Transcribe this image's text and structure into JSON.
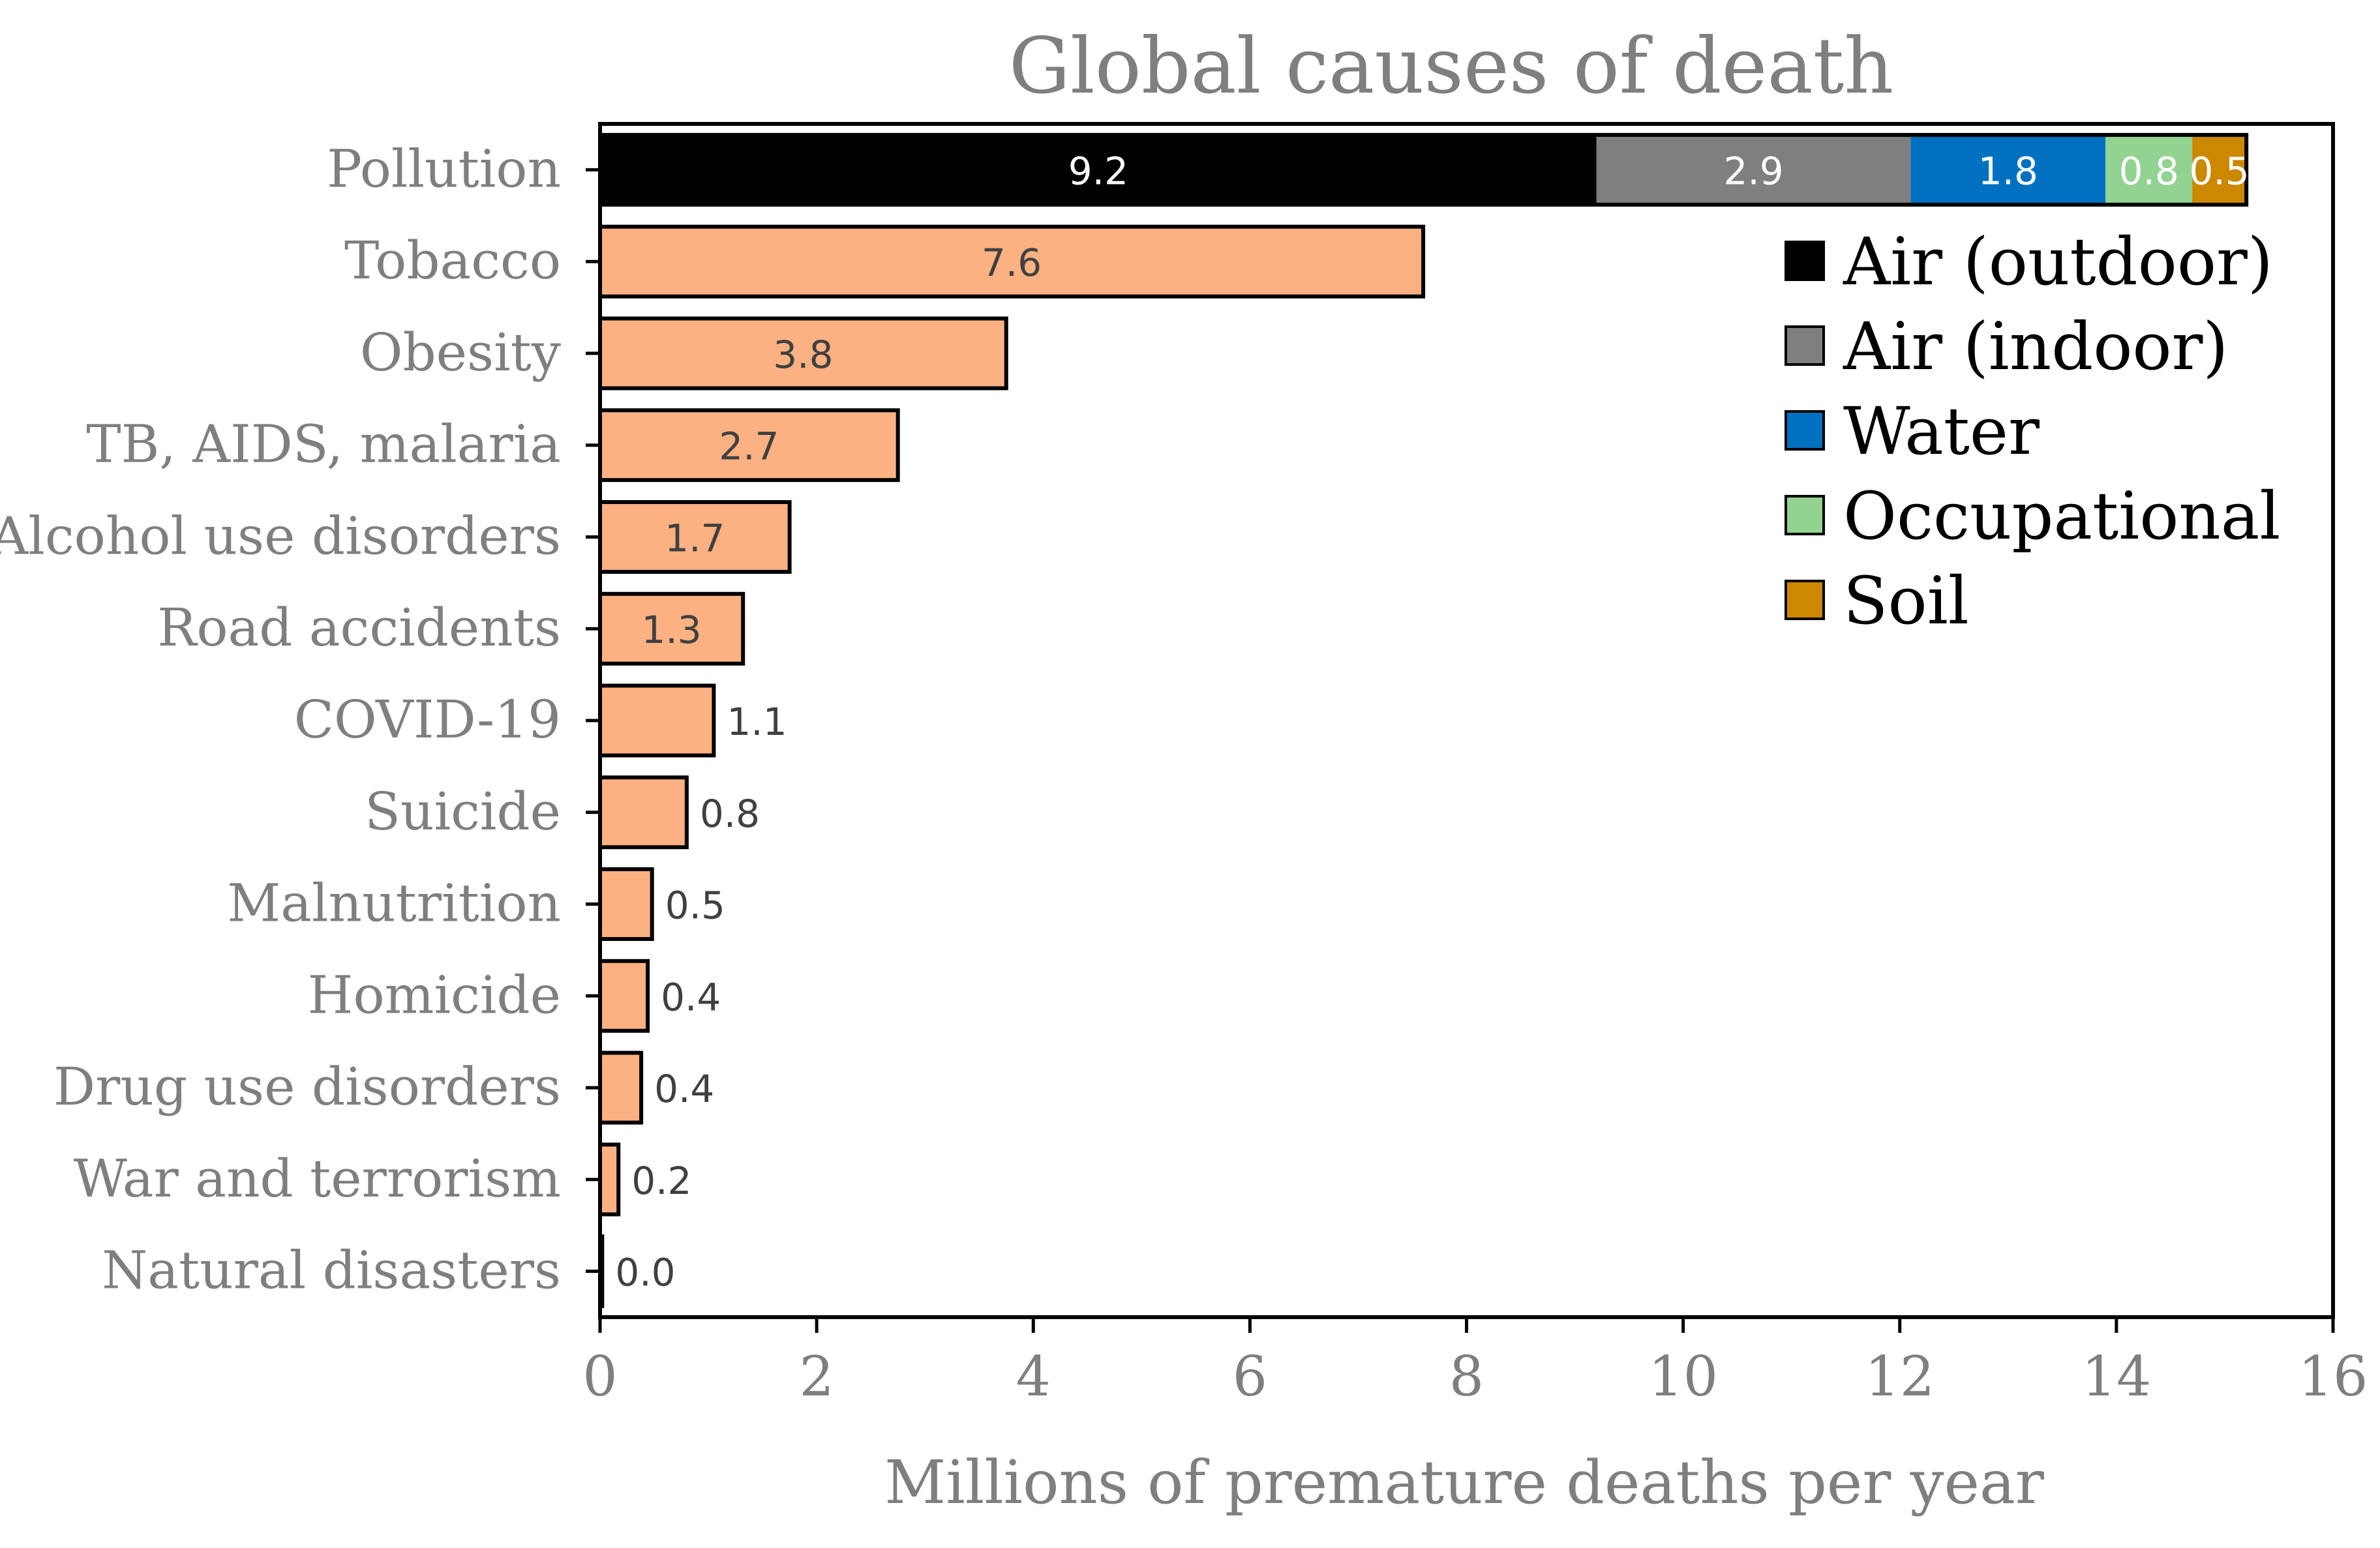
{
  "chart_data": {
    "type": "bar",
    "orientation": "horizontal",
    "title": "Global causes of death",
    "xlabel": "Millions of premature deaths per year",
    "ylabel": "",
    "xlim": [
      0,
      16
    ],
    "xticks": [
      "0",
      "2",
      "4",
      "6",
      "8",
      "10",
      "12",
      "14",
      "16"
    ],
    "grid": false,
    "legend_position": "top-right",
    "categories": [
      "Pollution",
      "Tobacco",
      "Obesity",
      "TB, AIDS, malaria",
      "Alcohol use disorders",
      "Road accidents",
      "COVID-19",
      "Suicide",
      "Malnutrition",
      "Homicide",
      "Drug use disorders",
      "War and terrorism",
      "Natural disasters"
    ],
    "stacked_bar": {
      "category": "Pollution",
      "segments": [
        {
          "name": "Air (outdoor)",
          "value": 9.2,
          "label": "9.2",
          "color": "#000000",
          "label_color": "#ffffff"
        },
        {
          "name": "Air (indoor)",
          "value": 2.9,
          "label": "2.9",
          "color": "#7f7f7f",
          "label_color": "#ffffff"
        },
        {
          "name": "Water",
          "value": 1.8,
          "label": "1.8",
          "color": "#0070c0",
          "label_color": "#ffffff"
        },
        {
          "name": "Occupational",
          "value": 0.8,
          "label": "0.8",
          "color": "#92d391",
          "label_color": "#ffffff"
        },
        {
          "name": "Soil",
          "value": 0.5,
          "label": "0.5",
          "color": "#cc8800",
          "label_color": "#ffffff"
        }
      ]
    },
    "values": [
      null,
      7.6,
      3.75,
      2.75,
      1.75,
      1.32,
      1.05,
      0.8,
      0.48,
      0.44,
      0.38,
      0.17,
      0.02
    ],
    "value_labels": [
      null,
      "7.6",
      "3.8",
      "2.7",
      "1.7",
      "1.3",
      "1.1",
      "0.8",
      "0.5",
      "0.4",
      "0.4",
      "0.2",
      "0.0"
    ],
    "bar_color": "#fbb182",
    "bar_label_color": "#404040",
    "legend": [
      {
        "name": "Air (outdoor)",
        "color": "#000000"
      },
      {
        "name": "Air (indoor)",
        "color": "#7f7f7f"
      },
      {
        "name": "Water",
        "color": "#0070c0"
      },
      {
        "name": "Occupational",
        "color": "#92d391"
      },
      {
        "name": "Soil",
        "color": "#cc8800"
      }
    ],
    "text_color": "#7f7f7f"
  }
}
